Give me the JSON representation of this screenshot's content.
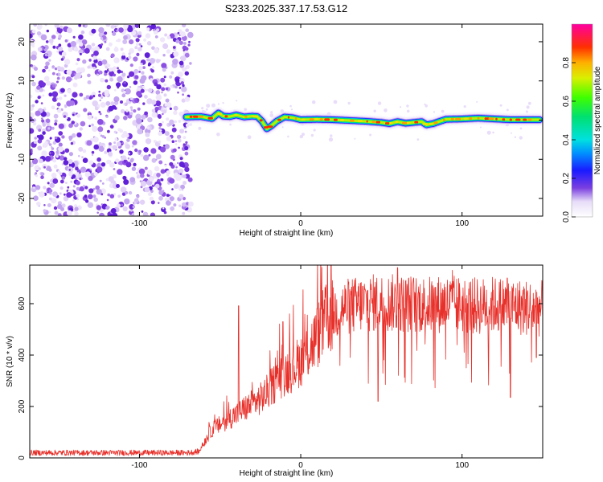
{
  "title": "S233.2025.337.17.53.G12",
  "colors": {
    "snr_line": "#e8302a",
    "noise_dots": "#7a2ee0",
    "noise_light": "#d7c2f7",
    "axis": "#000000"
  },
  "chart_data": [
    {
      "type": "heatmap",
      "name": "spectrogram",
      "xlabel": "Height of straight line (km)",
      "ylabel": "Frequency (Hz)",
      "xlim": [
        -168,
        150
      ],
      "ylim": [
        -24.5,
        24.5
      ],
      "xticks": [
        "-100",
        "0",
        "100"
      ],
      "xtick_values": [
        -100,
        0,
        100
      ],
      "yticks": [
        "-20",
        "-10",
        "0",
        "10",
        "20"
      ],
      "ytick_values": [
        -20,
        -10,
        0,
        10,
        20
      ],
      "noise_region_x": [
        -168,
        -70
      ],
      "ridge": {
        "x": [
          -71,
          -62,
          -55,
          -51,
          -48,
          -44,
          -40,
          -35,
          -30,
          -27,
          -24,
          -21,
          -18,
          -15,
          -10,
          -5,
          0,
          10,
          20,
          30,
          40,
          50,
          55,
          60,
          65,
          70,
          75,
          78,
          82,
          90,
          100,
          110,
          120,
          130,
          140,
          148
        ],
        "y": [
          0.8,
          0.9,
          0.4,
          1.8,
          1.0,
          0.9,
          1.3,
          0.8,
          1.0,
          0.9,
          -0.3,
          -2.2,
          -1.4,
          -0.3,
          0.8,
          0.6,
          0.1,
          0.2,
          0.1,
          -0.1,
          -0.3,
          -0.6,
          -0.9,
          -0.4,
          -0.8,
          -0.6,
          -0.4,
          -1.2,
          -0.9,
          0.2,
          0.3,
          0.5,
          0.3,
          0.1,
          0.1,
          0.1
        ]
      },
      "colorbar": {
        "label": "Normalized spectral amplitude",
        "range": [
          0.0,
          1.0
        ],
        "ticks": [
          "0.0",
          "0.2",
          "0.4",
          "0.6",
          "0.8"
        ],
        "tick_values": [
          0.0,
          0.2,
          0.4,
          0.6,
          0.8
        ]
      }
    },
    {
      "type": "line",
      "name": "snr",
      "xlabel": "Height of straight line (km)",
      "ylabel": "SNR (10 * v/v)",
      "xlim": [
        -168,
        150
      ],
      "ylim": [
        0,
        750
      ],
      "xticks": [
        "-100",
        "0",
        "100"
      ],
      "xtick_values": [
        -100,
        0,
        100
      ],
      "yticks": [
        "0",
        "200",
        "400",
        "600"
      ],
      "ytick_values": [
        0,
        200,
        400,
        600
      ],
      "series": [
        {
          "name": "SNR",
          "envelope_x": [
            -168,
            -70,
            -63,
            -60,
            -55,
            -50,
            -45,
            -40,
            -35,
            -30,
            -25,
            -20,
            -15,
            -10,
            -5,
            0,
            5,
            10,
            15,
            20,
            25,
            30,
            40,
            50,
            60,
            70,
            80,
            90,
            100,
            110,
            120,
            130,
            140,
            150
          ],
          "envelope_y": [
            20,
            20,
            25,
            60,
            110,
            130,
            150,
            170,
            190,
            210,
            230,
            260,
            300,
            330,
            350,
            380,
            420,
            470,
            530,
            560,
            580,
            590,
            600,
            605,
            600,
            600,
            595,
            600,
            595,
            590,
            595,
            590,
            585,
            580
          ],
          "spikes": [
            {
              "x": -38.5,
              "y": 592
            },
            {
              "x": -11,
              "y": 530
            },
            {
              "x": 60,
              "y": 740
            },
            {
              "x": 94,
              "y": 730
            },
            {
              "x": 128,
              "y": 700
            },
            {
              "x": 48,
              "y": 220
            },
            {
              "x": 130,
              "y": 235
            },
            {
              "x": 146,
              "y": 390
            }
          ]
        }
      ]
    }
  ]
}
